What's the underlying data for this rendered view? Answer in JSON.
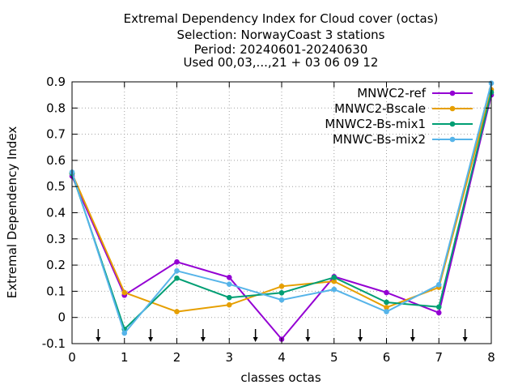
{
  "chart_data": {
    "type": "line",
    "title_lines": [
      "Extremal Dependency Index  for Cloud cover (octas)",
      "Selection: NorwayCoast      3 stations",
      "Period: 20240601-20240630",
      "Used 00,03,...,21 + 03 06 09 12"
    ],
    "xlabel": "classes octas",
    "ylabel": "Extremal Dependency Index",
    "xlim": [
      0,
      8
    ],
    "ylim": [
      -0.1,
      0.9
    ],
    "x_ticks": [
      0,
      1,
      2,
      3,
      4,
      5,
      6,
      7,
      8
    ],
    "x_tick_labels": [
      "0",
      "1",
      "2",
      "3",
      "4",
      "5",
      "6",
      "7",
      "8"
    ],
    "y_ticks": [
      -0.1,
      0,
      0.1,
      0.2,
      0.3,
      0.4,
      0.5,
      0.6,
      0.7,
      0.8,
      0.9
    ],
    "y_tick_labels": [
      "-0.1",
      "0",
      "0.1",
      "0.2",
      "0.3",
      "0.4",
      "0.5",
      "0.6",
      "0.7",
      "0.8",
      "0.9"
    ],
    "grid": true,
    "legend_position": "top-right",
    "x": [
      0,
      1,
      2,
      3,
      4,
      5,
      6,
      7,
      8
    ],
    "series": [
      {
        "name": "MNWC2-ref",
        "color": "#9400d3",
        "values": [
          0.54,
          0.085,
          0.212,
          0.153,
          -0.083,
          0.156,
          0.095,
          0.018,
          0.85
        ]
      },
      {
        "name": "MNWC2-Bscale",
        "color": "#e69f00",
        "values": [
          0.55,
          0.095,
          0.022,
          0.048,
          0.119,
          0.138,
          0.038,
          0.115,
          0.87
        ]
      },
      {
        "name": "MNWC2-Bs-mix1",
        "color": "#009e73",
        "values": [
          0.55,
          -0.045,
          0.15,
          0.076,
          0.094,
          0.153,
          0.058,
          0.04,
          0.86
        ]
      },
      {
        "name": "MNWC-Bs-mix2",
        "color": "#56b4e9",
        "values": [
          0.555,
          -0.06,
          0.178,
          0.127,
          0.067,
          0.107,
          0.022,
          0.125,
          0.895
        ]
      }
    ],
    "arrow_markers_x": [
      0.5,
      1.5,
      2.5,
      3.5,
      4.5,
      5.5,
      6.5,
      7.5
    ]
  }
}
